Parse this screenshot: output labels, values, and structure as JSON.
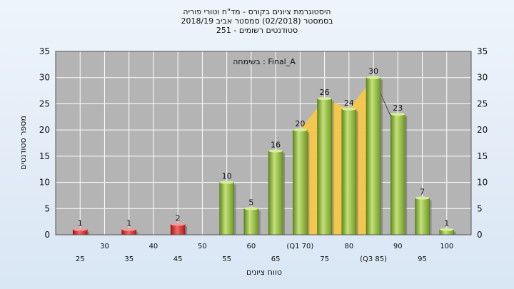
{
  "chart_data": {
    "type": "bar",
    "title_lines": [
      "היסטוגרמת ציונים בקורס - מד\"ח וטורי פוריה",
      "בסמסטר  (02/2018)  סמסטר אביב 2018/19",
      "סטודנטים רשומים - 251"
    ],
    "annotation": "בשימחה : Final_A",
    "xlabel": "טווח ציונים",
    "ylabel": "מספר סטודנטים",
    "ylim": [
      0,
      35
    ],
    "yticks": [
      0,
      5,
      10,
      15,
      20,
      25,
      30,
      35
    ],
    "grid": true,
    "x_tick_labels": [
      {
        "x": 25,
        "label": "25",
        "row": 2
      },
      {
        "x": 30,
        "label": "30",
        "row": 1
      },
      {
        "x": 35,
        "label": "35",
        "row": 2
      },
      {
        "x": 40,
        "label": "40",
        "row": 1
      },
      {
        "x": 45,
        "label": "45",
        "row": 2
      },
      {
        "x": 50,
        "label": "50",
        "row": 1
      },
      {
        "x": 55,
        "label": "55",
        "row": 2
      },
      {
        "x": 60,
        "label": "60",
        "row": 1
      },
      {
        "x": 65,
        "label": "65",
        "row": 2
      },
      {
        "x": 70,
        "label": "(Q1 70)",
        "row": 1
      },
      {
        "x": 75,
        "label": "75",
        "row": 2
      },
      {
        "x": 80,
        "label": "80",
        "row": 1
      },
      {
        "x": 85,
        "label": "(Q3 85)",
        "row": 2
      },
      {
        "x": 90,
        "label": "90",
        "row": 1
      },
      {
        "x": 95,
        "label": "95",
        "row": 2
      },
      {
        "x": 100,
        "label": "100",
        "row": 1
      }
    ],
    "bars": [
      {
        "x": 25,
        "value": 1,
        "color": "#d42a2a"
      },
      {
        "x": 35,
        "value": 1,
        "color": "#d42a2a"
      },
      {
        "x": 45,
        "value": 2,
        "color": "#d42a2a"
      },
      {
        "x": 55,
        "value": 10,
        "color": "#86b034"
      },
      {
        "x": 60,
        "value": 5,
        "color": "#86b034"
      },
      {
        "x": 65,
        "value": 16,
        "color": "#86b034"
      },
      {
        "x": 70,
        "value": 20,
        "color": "#86b034"
      },
      {
        "x": 75,
        "value": 26,
        "color": "#86b034"
      },
      {
        "x": 80,
        "value": 24,
        "color": "#86b034"
      },
      {
        "x": 85,
        "value": 30,
        "color": "#86b034"
      },
      {
        "x": 90,
        "value": 23,
        "color": "#86b034"
      },
      {
        "x": 95,
        "value": 7,
        "color": "#86b034"
      },
      {
        "x": 100,
        "value": 1,
        "color": "#86b034"
      }
    ],
    "iqr_band": {
      "from_x": 70,
      "to_x": 85,
      "color": "#f7c84a"
    },
    "plot_background": "#b4b4b4",
    "grid_color": "#ffffff"
  }
}
